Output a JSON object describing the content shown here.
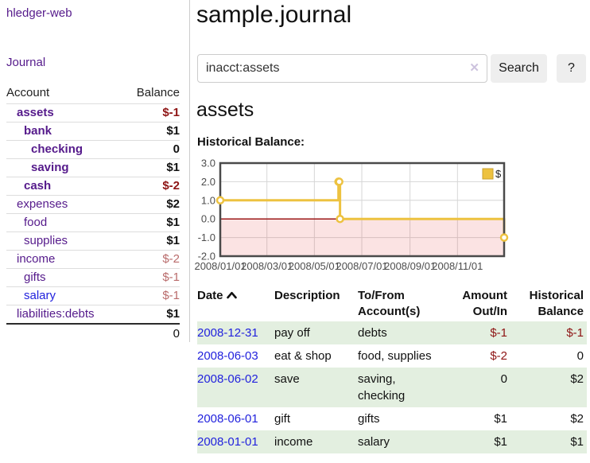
{
  "colors": {
    "link_purple": "#551a8b",
    "link_blue": "#2222dd",
    "negative_strong": "#8e1414",
    "negative_soft": "#b96b6b",
    "row_green": "#e3efe0",
    "button_gray": "#eeeeee",
    "chart_line_gold": "#edc240",
    "chart_zero_line": "#9c1a1a",
    "chart_negative_fill": "#fbdddd",
    "chart_border": "#4a4a4a",
    "chart_grid": "#d6d6d6"
  },
  "sidebar": {
    "app_title": "hledger-web",
    "journal_label": "Journal",
    "accounts_table": {
      "account_header": "Account",
      "balance_header": "Balance",
      "rows": [
        {
          "name": "assets",
          "depth": 1,
          "bold": true,
          "balance": "$-1",
          "balance_style": "neg-strong"
        },
        {
          "name": "bank",
          "depth": 2,
          "bold": true,
          "balance": "$1",
          "balance_style": "pos"
        },
        {
          "name": "checking",
          "depth": 3,
          "bold": true,
          "balance": "0",
          "balance_style": "pos"
        },
        {
          "name": "saving",
          "depth": 3,
          "bold": true,
          "balance": "$1",
          "balance_style": "pos"
        },
        {
          "name": "cash",
          "depth": 2,
          "bold": true,
          "balance": "$-2",
          "balance_style": "neg-strong"
        },
        {
          "name": "expenses",
          "depth": 1,
          "bold": false,
          "balance": "$2",
          "balance_style": "pos"
        },
        {
          "name": "food",
          "depth": 2,
          "bold": false,
          "balance": "$1",
          "balance_style": "pos"
        },
        {
          "name": "supplies",
          "depth": 2,
          "bold": false,
          "balance": "$1",
          "balance_style": "pos"
        },
        {
          "name": "income",
          "depth": 1,
          "bold": false,
          "balance": "$-2",
          "balance_style": "neg-soft"
        },
        {
          "name": "gifts",
          "depth": 2,
          "bold": false,
          "balance": "$-1",
          "balance_style": "neg-soft"
        },
        {
          "name": "salary",
          "depth": 2,
          "bold": false,
          "balance": "$-1",
          "balance_style": "neg-soft",
          "link_style": "unvisited"
        },
        {
          "name": "liabilities:debts",
          "depth": 1,
          "bold": false,
          "balance": "$1",
          "balance_style": "pos"
        }
      ],
      "total": "0"
    }
  },
  "header": {
    "title": "sample.journal"
  },
  "search": {
    "query": "inacct:assets",
    "clear_icon": "✕",
    "search_button_label": "Search",
    "help_button_label": "?"
  },
  "account_page": {
    "heading": "assets",
    "chart_label": "Historical Balance:"
  },
  "chart_data": {
    "type": "line",
    "style": "step-after",
    "title": "Historical Balance",
    "x_range": [
      "2008-01-01",
      "2008-12-31"
    ],
    "ylim": [
      -2,
      3
    ],
    "grid": true,
    "legend": {
      "label": "$",
      "position": "top-right"
    },
    "y_ticks": [
      {
        "label": "3.0",
        "value": 3
      },
      {
        "label": "2.0",
        "value": 2
      },
      {
        "label": "1.0",
        "value": 1
      },
      {
        "label": "0.0",
        "value": 0
      },
      {
        "label": "-1.0",
        "value": -1
      },
      {
        "label": "-2.0",
        "value": -2
      }
    ],
    "x_ticks": [
      {
        "label": "2008/01/01",
        "date": "2008-01-01"
      },
      {
        "label": "2008/03/01",
        "date": "2008-03-01"
      },
      {
        "label": "2008/05/01",
        "date": "2008-05-01"
      },
      {
        "label": "2008/07/01",
        "date": "2008-07-01"
      },
      {
        "label": "2008/09/01",
        "date": "2008-09-01"
      },
      {
        "label": "2008/11/01",
        "date": "2008-11-01"
      }
    ],
    "series": [
      {
        "name": "$",
        "color": "#edc240",
        "points": [
          {
            "date": "2008-01-01",
            "value": 1
          },
          {
            "date": "2008-06-01",
            "value": 2
          },
          {
            "date": "2008-06-02",
            "value": 2
          },
          {
            "date": "2008-06-03",
            "value": 0
          },
          {
            "date": "2008-12-31",
            "value": -1
          }
        ]
      }
    ]
  },
  "register_table": {
    "headers": {
      "date": "Date",
      "description_lines": [
        "Description"
      ],
      "account_lines": [
        "To/From",
        "Account(s)"
      ],
      "amount_lines": [
        "Amount",
        "Out/In"
      ],
      "balance_lines": [
        "Historical",
        "Balance"
      ]
    },
    "rows": [
      {
        "date": "2008-12-31",
        "description": "pay off",
        "account_lines": [
          "debts"
        ],
        "amount": "$-1",
        "amount_negative": true,
        "balance": "$-1",
        "balance_negative": true
      },
      {
        "date": "2008-06-03",
        "description": "eat & shop",
        "account_lines": [
          "food, supplies"
        ],
        "amount": "$-2",
        "amount_negative": true,
        "balance": "0",
        "balance_negative": false
      },
      {
        "date": "2008-06-02",
        "description": "save",
        "account_lines": [
          "saving,",
          "checking"
        ],
        "amount": "0",
        "amount_negative": false,
        "balance": "$2",
        "balance_negative": false
      },
      {
        "date": "2008-06-01",
        "description": "gift",
        "account_lines": [
          "gifts"
        ],
        "amount": "$1",
        "amount_negative": false,
        "balance": "$2",
        "balance_negative": false
      },
      {
        "date": "2008-01-01",
        "description": "income",
        "account_lines": [
          "salary"
        ],
        "amount": "$1",
        "amount_negative": false,
        "balance": "$1",
        "balance_negative": false
      }
    ]
  }
}
